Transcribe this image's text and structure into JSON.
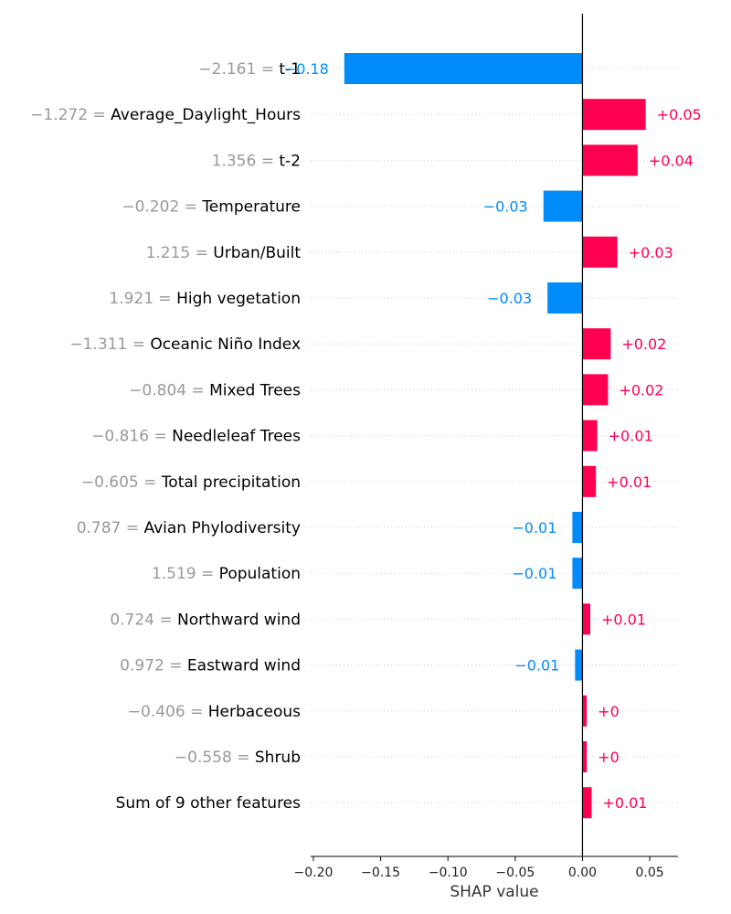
{
  "chart_data": {
    "type": "bar",
    "orientation": "horizontal",
    "xlabel": "SHAP value",
    "xlim": [
      -0.202,
      0.071
    ],
    "xticks": [
      {
        "value": -0.2,
        "label": "−0.20"
      },
      {
        "value": -0.15,
        "label": "−0.15"
      },
      {
        "value": -0.1,
        "label": "−0.10"
      },
      {
        "value": -0.05,
        "label": "−0.05"
      },
      {
        "value": 0.0,
        "label": "0.00"
      },
      {
        "value": 0.05,
        "label": "0.05"
      }
    ],
    "grid": "horizontal dotted",
    "colors": {
      "positive": "#ff0051",
      "negative": "#008bfb",
      "feature_value": "#999999",
      "feature_name": "#000000"
    },
    "features": [
      {
        "value": "−2.161",
        "name": "t-1",
        "shap": -0.177,
        "label": "−0.18"
      },
      {
        "value": "−1.272",
        "name": "Average_Daylight_Hours",
        "shap": 0.047,
        "label": "+0.05"
      },
      {
        "value": "1.356",
        "name": "t-2",
        "shap": 0.041,
        "label": "+0.04"
      },
      {
        "value": "−0.202",
        "name": "Temperature",
        "shap": -0.029,
        "label": "−0.03"
      },
      {
        "value": "1.215",
        "name": "Urban/Built",
        "shap": 0.026,
        "label": "+0.03"
      },
      {
        "value": "1.921",
        "name": "High vegetation",
        "shap": -0.026,
        "label": "−0.03"
      },
      {
        "value": "−1.311",
        "name": "Oceanic Niño Index",
        "shap": 0.021,
        "label": "+0.02"
      },
      {
        "value": "−0.804",
        "name": "Mixed Trees",
        "shap": 0.019,
        "label": "+0.02"
      },
      {
        "value": "−0.816",
        "name": "Needleleaf Trees",
        "shap": 0.011,
        "label": "+0.01"
      },
      {
        "value": "−0.605",
        "name": "Total precipitation",
        "shap": 0.01,
        "label": "+0.01"
      },
      {
        "value": "0.787",
        "name": "Avian Phylodiversity",
        "shap": -0.0075,
        "label": "−0.01"
      },
      {
        "value": "1.519",
        "name": "Population",
        "shap": -0.0075,
        "label": "−0.01"
      },
      {
        "value": "0.724",
        "name": "Northward wind",
        "shap": 0.0058,
        "label": "+0.01"
      },
      {
        "value": "0.972",
        "name": "Eastward wind",
        "shap": -0.0055,
        "label": "−0.01"
      },
      {
        "value": "−0.406",
        "name": "Herbaceous",
        "shap": 0.0032,
        "label": "+0"
      },
      {
        "value": "−0.558",
        "name": "Shrub",
        "shap": 0.0032,
        "label": "+0"
      },
      {
        "value": "",
        "name": "Sum of 9 other features",
        "shap": 0.0068,
        "label": "+0.01"
      }
    ]
  }
}
